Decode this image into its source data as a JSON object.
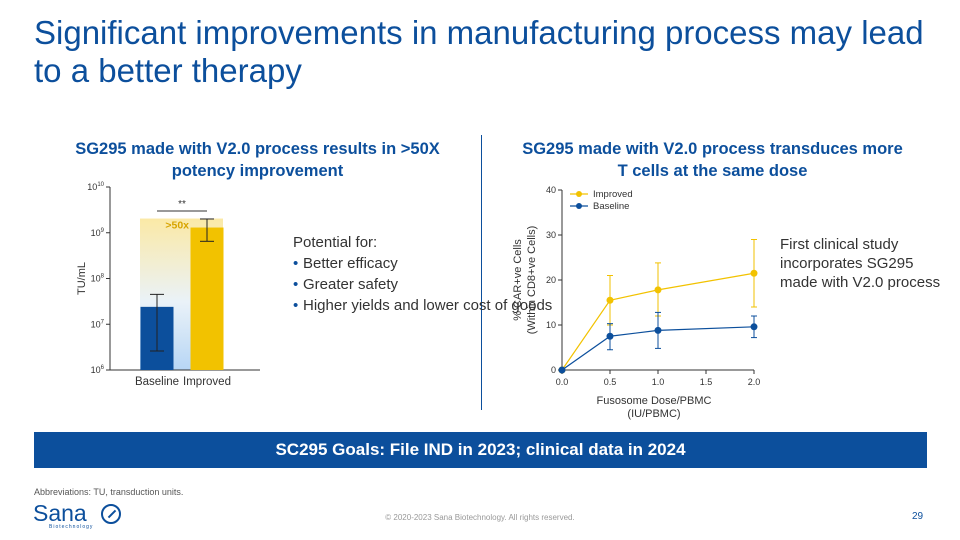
{
  "slide": {
    "title": "Significant improvements in manufacturing process may lead to a better therapy",
    "left_heading": "SG295 made with V2.0 process results in >50X potency improvement",
    "right_heading": "SG295 made with V2.0 process transduces more T cells at the same dose",
    "potential_title": "Potential for:",
    "potential_items": [
      "Better efficacy",
      "Greater safety",
      "Higher yields and lower cost of goods"
    ],
    "study_note": "First clinical study incorporates SG295 made with V2.0 process",
    "goal": "SC295 Goals: File IND in 2023; clinical data in 2024",
    "abbreviations": "Abbreviations: TU, transduction units.",
    "copyright": "© 2020-2023 Sana Biotechnology. All rights reserved.",
    "page_number": "29",
    "logo_text": "Sana",
    "logo_sub": "Biotechnology"
  },
  "colors": {
    "brand_blue": "#0c4f9c",
    "gold": "#f2c200",
    "light_blue": "#b7d6f5",
    "light_gold": "#fbe9a6"
  },
  "chart_data": [
    {
      "type": "bar",
      "ylabel": "TU/mL",
      "yscale": "log",
      "ylim": [
        1000000,
        10000000000
      ],
      "yticks": [
        {
          "v": 1000000,
          "base": "10",
          "exp": "6"
        },
        {
          "v": 10000000,
          "base": "10",
          "exp": "7"
        },
        {
          "v": 100000000,
          "base": "10",
          "exp": "8"
        },
        {
          "v": 1000000000,
          "base": "10",
          "exp": "9"
        },
        {
          "v": 10000000000,
          "base": "10",
          "exp": "10"
        }
      ],
      "categories": [
        "Baseline",
        "Improved"
      ],
      "values": [
        24000000,
        1300000000
      ],
      "errors_low": [
        2600000,
        650000000
      ],
      "errors_high": [
        45000000,
        2000000000
      ],
      "significance": "**",
      "fold_label": ">50x",
      "bar_colors": [
        "#0c4f9c",
        "#f2c200"
      ]
    },
    {
      "type": "line",
      "xlabel": "Fusosome Dose/PBMC (IU/PBMC)",
      "xlabel_lines": [
        "Fusosome Dose/PBMC",
        "(IU/PBMC)"
      ],
      "ylabel_lines": [
        "% CAR+ve Cells",
        "(Within CD8+ve Cells)"
      ],
      "xlim": [
        0,
        2
      ],
      "ylim": [
        0,
        40
      ],
      "xticks": [
        "0.0",
        "0.5",
        "1.0",
        "1.5",
        "2.0"
      ],
      "yticks": [
        "0",
        "10",
        "20",
        "30",
        "40"
      ],
      "legend_position": "top-left",
      "x": [
        0,
        0.5,
        1.0,
        2.0
      ],
      "series": [
        {
          "name": "Improved",
          "color": "#f2c200",
          "values": [
            0,
            15.5,
            17.8,
            21.5
          ],
          "err_low": [
            0,
            10,
            12,
            14
          ],
          "err_high": [
            0,
            21,
            23.8,
            29
          ]
        },
        {
          "name": "Baseline",
          "color": "#0c4f9c",
          "values": [
            0,
            7.5,
            8.8,
            9.6
          ],
          "err_low": [
            0,
            4.5,
            4.8,
            7.2
          ],
          "err_high": [
            0,
            10.3,
            12.8,
            12
          ]
        }
      ]
    }
  ]
}
